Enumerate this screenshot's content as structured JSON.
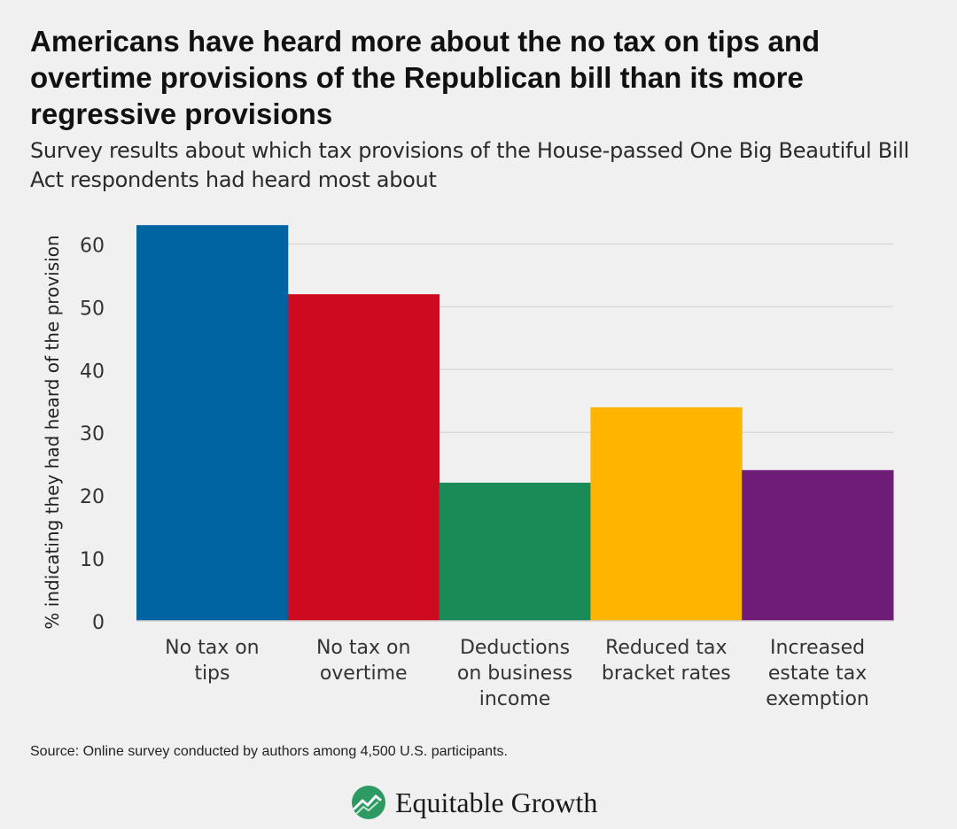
{
  "header": {
    "title": "Americans have heard more about the no tax on tips and overtime provisions of the Republican bill than its more regressive provisions",
    "subtitle": "Survey results about which tax provisions of the House-passed One Big Beautiful Bill Act respondents had heard most about"
  },
  "footer": {
    "source": "Source: Online survey conducted by authors among 4,500 U.S. participants.",
    "logo_text": "Equitable Growth"
  },
  "chart_data": {
    "type": "bar",
    "title": "Americans have heard more about the no tax on tips and overtime provisions of the Republican bill than its more regressive provisions",
    "xlabel": "",
    "ylabel": "% indicating they had heard of the provision",
    "ylim": [
      0,
      65
    ],
    "yticks": [
      0,
      10,
      20,
      30,
      40,
      50,
      60
    ],
    "grid": true,
    "categories": [
      [
        "No tax on",
        "tips"
      ],
      [
        "No tax on",
        "overtime"
      ],
      [
        "Deductions",
        "on business",
        "income"
      ],
      [
        "Reduced tax",
        "bracket rates"
      ],
      [
        "Increased",
        "estate tax",
        "exemption"
      ]
    ],
    "values": [
      63,
      52,
      22,
      34,
      24
    ],
    "colors": [
      "#0064a3",
      "#cf0a1e",
      "#1a8a57",
      "#ffb400",
      "#6e1c75"
    ]
  },
  "colors": {
    "background": "#f0f0f0",
    "grid": "#d9d9d9",
    "axis_text": "#333333",
    "logo_green": "#2e9a63"
  }
}
